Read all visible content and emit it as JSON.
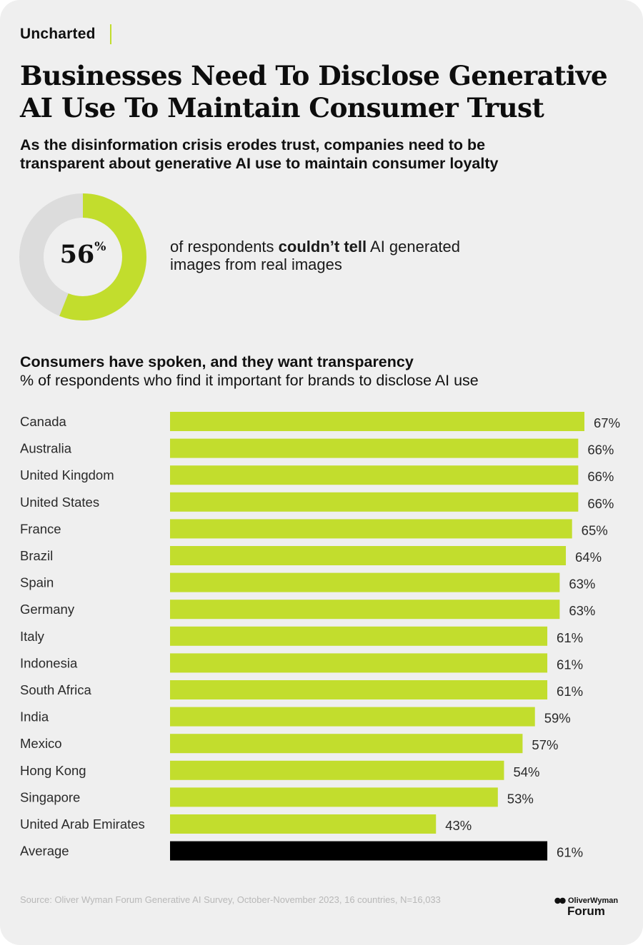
{
  "brand": "Uncharted",
  "title": [
    "Businesses Need To Disclose Generative",
    "AI Use To Maintain Consumer Trust"
  ],
  "subtitle": [
    "As the disinformation crisis erodes trust, companies need to be",
    "transparent about generative AI use to maintain consumer loyalty"
  ],
  "stat": {
    "value": 56,
    "value_label": "56",
    "unit": "%",
    "line1_pre": "of respondents ",
    "line1_bold": "couldn’t tell",
    "line1_post": " AI generated",
    "line2": "images from real images"
  },
  "colors": {
    "accent": "#c2dd2d",
    "average": "#000000",
    "donut_track": "#dcdcdc",
    "background": "#efefef"
  },
  "chart_data": {
    "type": "bar",
    "orientation": "horizontal",
    "title": "Consumers have spoken, and they want transparency",
    "subtitle": "% of respondents who find it important for brands to disclose AI use",
    "categories": [
      "Canada",
      "Australia",
      "United Kingdom",
      "United States",
      "France",
      "Brazil",
      "Spain",
      "Germany",
      "Italy",
      "Indonesia",
      "South Africa",
      "India",
      "Mexico",
      "Hong Kong",
      "Singapore",
      "United Arab Emirates",
      "Average"
    ],
    "values": [
      67,
      66,
      66,
      66,
      65,
      64,
      63,
      63,
      61,
      61,
      61,
      59,
      57,
      54,
      53,
      43,
      61
    ],
    "value_labels": [
      "67%",
      "66%",
      "66%",
      "66%",
      "65%",
      "64%",
      "63%",
      "63%",
      "61%",
      "61%",
      "61%",
      "59%",
      "57%",
      "54%",
      "53%",
      "43%",
      "61%"
    ],
    "highlight": "Average",
    "xlim": [
      0,
      67
    ],
    "grid": false,
    "legend": "none"
  },
  "footer": {
    "source": "Source: Oliver Wyman Forum Generative AI Survey, October-November 2023, 16 countries, N=16,033"
  },
  "logo": {
    "line1": "OliverWyman",
    "line2": "Forum",
    "icon": "oliver-wyman-mark-icon"
  }
}
